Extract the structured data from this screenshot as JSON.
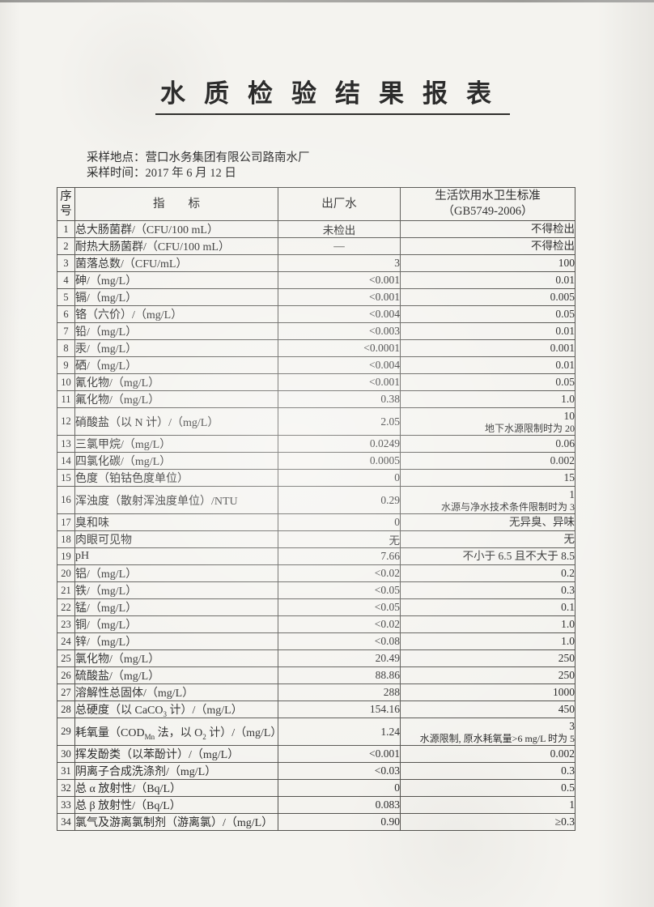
{
  "title": "水质检验结果报表",
  "meta": {
    "location_label": "采样地点：",
    "location_value": "营口水务集团有限公司路南水厂",
    "time_label": "采样时间：",
    "time_value": "2017 年 6 月 12 日"
  },
  "colors": {
    "paper": "#f4f3ef",
    "ink": "#2b2b2b",
    "table_border": "#53524e"
  },
  "table": {
    "headers": {
      "no": "序号",
      "indicator": "指　　标",
      "outflow_water": "出厂水",
      "standard_line1": "生活饮用水卫生标准",
      "standard_line2": "（GB5749-2006）"
    },
    "rows": [
      {
        "no": "1",
        "label": "总大肠菌群/（CFU/100 mL）",
        "value": "未检出",
        "center": true,
        "standard": "不得检出"
      },
      {
        "no": "2",
        "label": "耐热大肠菌群/（CFU/100 mL）",
        "value": "—",
        "center": true,
        "standard": "不得检出"
      },
      {
        "no": "3",
        "label": "菌落总数/（CFU/mL）",
        "value": "3",
        "standard": "100"
      },
      {
        "no": "4",
        "label": "砷/（mg/L）",
        "value": "<0.001",
        "standard": "0.01"
      },
      {
        "no": "5",
        "label": "镉/（mg/L）",
        "value": "<0.001",
        "standard": "0.005"
      },
      {
        "no": "6",
        "label": "铬（六价）/（mg/L）",
        "value": "<0.004",
        "standard": "0.05"
      },
      {
        "no": "7",
        "label": "铅/（mg/L）",
        "value": "<0.003",
        "standard": "0.01"
      },
      {
        "no": "8",
        "label": "汞/（mg/L）",
        "value": "<0.0001",
        "standard": "0.001"
      },
      {
        "no": "9",
        "label": "硒/（mg/L）",
        "value": "<0.004",
        "standard": "0.01"
      },
      {
        "no": "10",
        "label": "氰化物/（mg/L）",
        "value": "<0.001",
        "standard": "0.05"
      },
      {
        "no": "11",
        "label": "氟化物/（mg/L）",
        "value": "0.38",
        "standard": "1.0"
      },
      {
        "no": "12",
        "label": "硝酸盐（以 N 计）/（mg/L）",
        "value": "2.05",
        "standard": [
          "10",
          "地下水源限制时为 20"
        ]
      },
      {
        "no": "13",
        "label": "三氯甲烷/（mg/L）",
        "value": "0.0249",
        "standard": "0.06"
      },
      {
        "no": "14",
        "label": "四氯化碳/（mg/L）",
        "value": "0.0005",
        "standard": "0.002"
      },
      {
        "no": "15",
        "label": "色度（铂钴色度单位）",
        "value": "0",
        "standard": "15"
      },
      {
        "no": "16",
        "label": "浑浊度（散射浑浊度单位）/NTU",
        "value": "0.29",
        "standard": [
          "1",
          "水源与净水技术条件限制时为 3"
        ]
      },
      {
        "no": "17",
        "label": "臭和味",
        "value": "0",
        "standard": "无异臭、异味"
      },
      {
        "no": "18",
        "label": "肉眼可见物",
        "value": "无",
        "standard": "无"
      },
      {
        "no": "19",
        "label": "pH",
        "value": "7.66",
        "standard": "不小于 6.5 且不大于 8.5"
      },
      {
        "no": "20",
        "label": "铝/（mg/L）",
        "value": "<0.02",
        "standard": "0.2"
      },
      {
        "no": "21",
        "label": "铁/（mg/L）",
        "value": "<0.05",
        "standard": "0.3"
      },
      {
        "no": "22",
        "label": "锰/（mg/L）",
        "value": "<0.05",
        "standard": "0.1"
      },
      {
        "no": "23",
        "label": "铜/（mg/L）",
        "value": "<0.02",
        "standard": "1.0"
      },
      {
        "no": "24",
        "label": "锌/（mg/L）",
        "value": "<0.08",
        "standard": "1.0"
      },
      {
        "no": "25",
        "label": "氯化物/（mg/L）",
        "value": "20.49",
        "standard": "250"
      },
      {
        "no": "26",
        "label": "硫酸盐/（mg/L）",
        "value": "88.86",
        "standard": "250"
      },
      {
        "no": "27",
        "label": "溶解性总固体/（mg/L）",
        "value": "288",
        "standard": "1000"
      },
      {
        "no": "28",
        "label": [
          {
            "t": "总硬度（以 CaCO"
          },
          {
            "t": "3",
            "sub": true
          },
          {
            "t": " 计）/（mg/L）"
          }
        ],
        "value": "154.16",
        "standard": "450"
      },
      {
        "no": "29",
        "label": [
          {
            "t": "耗氧量（COD"
          },
          {
            "t": "Mn",
            "sub": true
          },
          {
            "t": " 法，以 O"
          },
          {
            "t": "2",
            "sub": true
          },
          {
            "t": " 计）/（mg/L）"
          }
        ],
        "value": "1.24",
        "standard": [
          "3",
          "水源限制, 原水耗氧量>6 mg/L 时为 5"
        ]
      },
      {
        "no": "30",
        "label": "挥发酚类（以苯酚计）/（mg/L）",
        "value": "<0.001",
        "standard": "0.002"
      },
      {
        "no": "31",
        "label": "阴离子合成洗涤剂/（mg/L）",
        "value": "<0.03",
        "standard": "0.3"
      },
      {
        "no": "32",
        "label": "总 α 放射性/（Bq/L）",
        "value": "0",
        "standard": "0.5"
      },
      {
        "no": "33",
        "label": "总 β 放射性/（Bq/L）",
        "value": "0.083",
        "standard": "1"
      },
      {
        "no": "34",
        "label": "氯气及游离氯制剂（游离氯）/（mg/L）",
        "value": "0.90",
        "standard": "≥0.3"
      }
    ]
  }
}
